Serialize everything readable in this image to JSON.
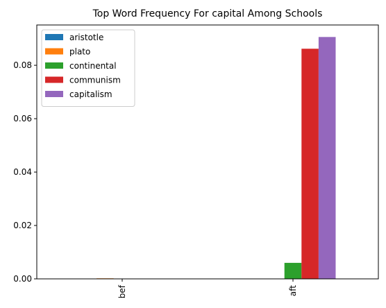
{
  "chart_data": {
    "type": "bar",
    "title": "Top Word Frequency For capital Among Schools",
    "xlabel": "",
    "ylabel": "",
    "categories": [
      "bef",
      "aft"
    ],
    "series": [
      {
        "name": "aristotle",
        "color": "#1f77b4",
        "values": [
          0.0,
          0.0
        ]
      },
      {
        "name": "plato",
        "color": "#ff7f0e",
        "values": [
          0.0002,
          0.0
        ]
      },
      {
        "name": "continental",
        "color": "#2ca02c",
        "values": [
          0.0,
          0.006
        ]
      },
      {
        "name": "communism",
        "color": "#d62728",
        "values": [
          0.0,
          0.0862
        ]
      },
      {
        "name": "capitalism",
        "color": "#9467bd",
        "values": [
          0.0,
          0.0906
        ]
      }
    ],
    "yticks": [
      0.0,
      0.02,
      0.04,
      0.06,
      0.08
    ],
    "ytick_labels": [
      "0.00",
      "0.02",
      "0.04",
      "0.06",
      "0.08"
    ],
    "ylim": [
      0,
      0.0951
    ],
    "grid": false,
    "legend_position": "upper-left"
  }
}
